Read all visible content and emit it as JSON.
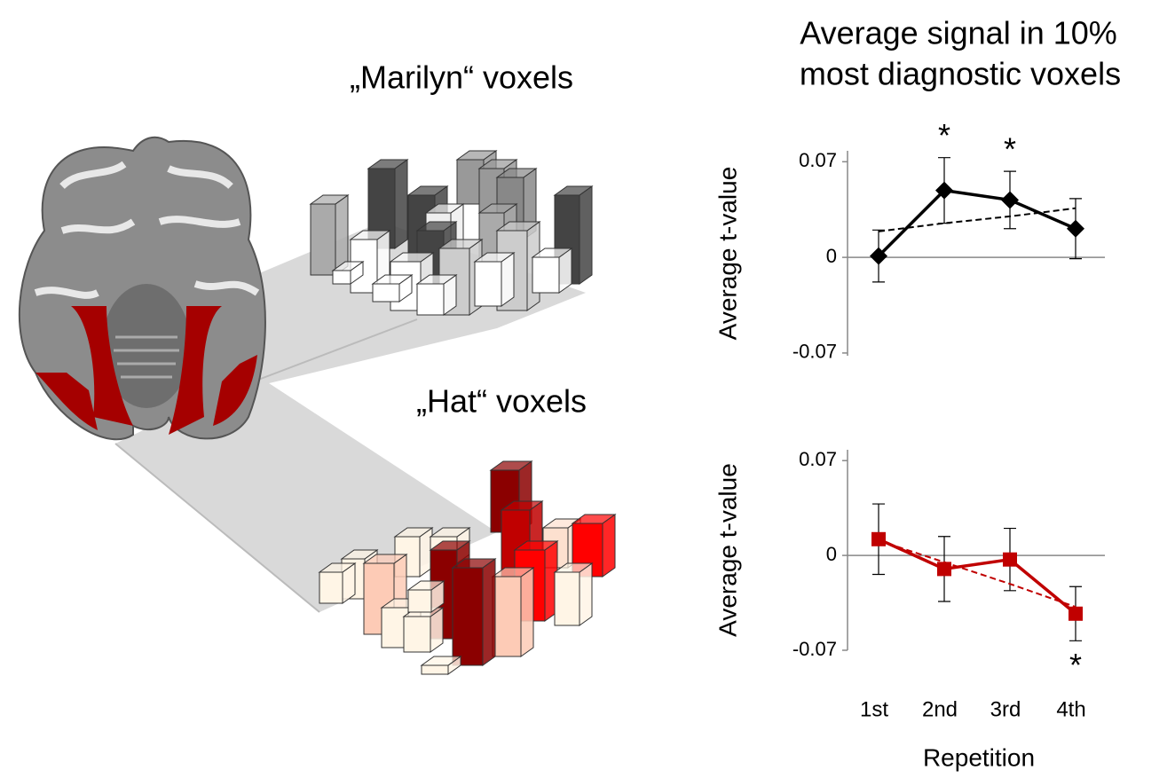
{
  "title": [
    "Average signal in 10%",
    "most diagnostic voxels"
  ],
  "voxel_labels": [
    "„Marilyn“ voxels",
    "„Hat“ voxels"
  ],
  "chart_data": [
    {
      "type": "line",
      "ylabel": "Average t-value",
      "categories": [
        "1st",
        "2nd",
        "3rd",
        "4th"
      ],
      "show_xticklabels": false,
      "ylim": [
        -0.072,
        0.078
      ],
      "yticks": [
        -0.07,
        0,
        0.07
      ],
      "zero_line": true,
      "series": [
        {
          "color": "#000000",
          "marker": "diamond",
          "values": [
            0.001,
            0.049,
            0.042,
            0.021
          ],
          "errors": [
            0.019,
            0.024,
            0.021,
            0.022
          ]
        },
        {
          "color": "#000000",
          "dashed": true,
          "values": [
            0.019,
            0.025,
            0.03,
            0.036
          ]
        }
      ],
      "annotations": [
        {
          "x": "2nd",
          "text": "*",
          "position": "above"
        },
        {
          "x": "3rd",
          "text": "*",
          "position": "above"
        }
      ]
    },
    {
      "type": "line",
      "ylabel": "Average t-value",
      "xlabel": "Repetition",
      "categories": [
        "1st",
        "2nd",
        "3rd",
        "4th"
      ],
      "show_xticklabels": true,
      "ylim": [
        -0.07,
        0.078
      ],
      "yticks": [
        -0.07,
        0,
        0.07
      ],
      "zero_line": true,
      "series": [
        {
          "color": "#c00000",
          "marker": "square",
          "values": [
            0.012,
            -0.01,
            -0.003,
            -0.043
          ],
          "errors": [
            0.026,
            0.024,
            0.023,
            0.02
          ]
        },
        {
          "color": "#c00000",
          "dashed": true,
          "values": [
            0.011,
            -0.005,
            -0.021,
            -0.038
          ]
        }
      ],
      "annotations": [
        {
          "x": "4th",
          "text": "*",
          "position": "below"
        }
      ]
    }
  ]
}
